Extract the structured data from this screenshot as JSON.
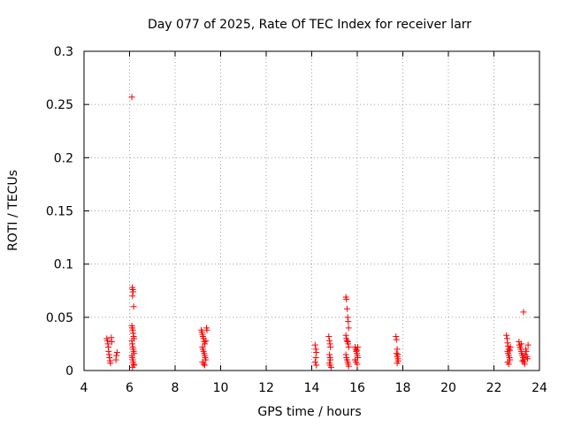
{
  "chart_data": {
    "type": "scatter",
    "title": "Day 077 of 2025, Rate Of TEC Index for receiver larr",
    "xlabel": "GPS time / hours",
    "ylabel": "ROTI / TECUs",
    "xlim": [
      4,
      24
    ],
    "ylim": [
      0,
      0.3
    ],
    "x_ticks": [
      "4",
      "6",
      "8",
      "10",
      "12",
      "14",
      "16",
      "18",
      "20",
      "22",
      "24"
    ],
    "y_ticks": [
      "0",
      "0.05",
      "0.1",
      "0.15",
      "0.2",
      "0.25",
      "0.3"
    ],
    "grid": true,
    "marker": "plus",
    "color": "#ff0000",
    "series": [
      {
        "points": [
          [
            5.0,
            0.03
          ],
          [
            5.03,
            0.028
          ],
          [
            5.05,
            0.025
          ],
          [
            5.07,
            0.022
          ],
          [
            5.08,
            0.018
          ],
          [
            5.1,
            0.015
          ],
          [
            5.12,
            0.012
          ],
          [
            5.14,
            0.009
          ],
          [
            5.16,
            0.007
          ],
          [
            5.2,
            0.031
          ],
          [
            5.22,
            0.027
          ],
          [
            5.4,
            0.01
          ],
          [
            5.42,
            0.014
          ],
          [
            5.45,
            0.017
          ],
          [
            6.1,
            0.257
          ],
          [
            6.12,
            0.078
          ],
          [
            6.14,
            0.076
          ],
          [
            6.16,
            0.074
          ],
          [
            6.13,
            0.07
          ],
          [
            6.18,
            0.06
          ],
          [
            6.1,
            0.042
          ],
          [
            6.12,
            0.04
          ],
          [
            6.14,
            0.038
          ],
          [
            6.16,
            0.035
          ],
          [
            6.18,
            0.032
          ],
          [
            6.2,
            0.03
          ],
          [
            6.1,
            0.028
          ],
          [
            6.12,
            0.025
          ],
          [
            6.14,
            0.022
          ],
          [
            6.16,
            0.02
          ],
          [
            6.18,
            0.018
          ],
          [
            6.2,
            0.016
          ],
          [
            6.1,
            0.014
          ],
          [
            6.12,
            0.012
          ],
          [
            6.14,
            0.01
          ],
          [
            6.16,
            0.008
          ],
          [
            6.18,
            0.006
          ],
          [
            6.2,
            0.005
          ],
          [
            6.13,
            0.003
          ],
          [
            9.15,
            0.038
          ],
          [
            9.18,
            0.036
          ],
          [
            9.2,
            0.034
          ],
          [
            9.22,
            0.032
          ],
          [
            9.25,
            0.03
          ],
          [
            9.28,
            0.027
          ],
          [
            9.3,
            0.025
          ],
          [
            9.2,
            0.022
          ],
          [
            9.22,
            0.02
          ],
          [
            9.25,
            0.018
          ],
          [
            9.28,
            0.016
          ],
          [
            9.3,
            0.014
          ],
          [
            9.32,
            0.012
          ],
          [
            9.35,
            0.01
          ],
          [
            9.2,
            0.008
          ],
          [
            9.25,
            0.006
          ],
          [
            9.3,
            0.005
          ],
          [
            9.38,
            0.04
          ],
          [
            9.4,
            0.038
          ],
          [
            9.35,
            0.028
          ],
          [
            14.15,
            0.024
          ],
          [
            14.18,
            0.02
          ],
          [
            14.2,
            0.017
          ],
          [
            14.18,
            0.012
          ],
          [
            14.15,
            0.008
          ],
          [
            14.2,
            0.005
          ],
          [
            14.75,
            0.032
          ],
          [
            14.78,
            0.028
          ],
          [
            14.8,
            0.025
          ],
          [
            14.82,
            0.022
          ],
          [
            14.78,
            0.015
          ],
          [
            14.8,
            0.012
          ],
          [
            14.82,
            0.01
          ],
          [
            14.78,
            0.007
          ],
          [
            14.8,
            0.005
          ],
          [
            14.85,
            0.003
          ],
          [
            15.5,
            0.069
          ],
          [
            15.52,
            0.067
          ],
          [
            15.55,
            0.058
          ],
          [
            15.58,
            0.05
          ],
          [
            15.6,
            0.046
          ],
          [
            15.62,
            0.04
          ],
          [
            15.5,
            0.033
          ],
          [
            15.52,
            0.03
          ],
          [
            15.55,
            0.028
          ],
          [
            15.58,
            0.027
          ],
          [
            15.6,
            0.025
          ],
          [
            15.62,
            0.022
          ],
          [
            15.5,
            0.015
          ],
          [
            15.52,
            0.012
          ],
          [
            15.55,
            0.01
          ],
          [
            15.58,
            0.008
          ],
          [
            15.6,
            0.006
          ],
          [
            15.62,
            0.004
          ],
          [
            15.9,
            0.022
          ],
          [
            15.93,
            0.02
          ],
          [
            15.95,
            0.018
          ],
          [
            15.98,
            0.016
          ],
          [
            16.0,
            0.014
          ],
          [
            16.02,
            0.012
          ],
          [
            15.9,
            0.01
          ],
          [
            15.95,
            0.008
          ],
          [
            16.0,
            0.006
          ],
          [
            16.02,
            0.022
          ],
          [
            15.98,
            0.019
          ],
          [
            17.7,
            0.032
          ],
          [
            17.72,
            0.029
          ],
          [
            17.75,
            0.02
          ],
          [
            17.72,
            0.016
          ],
          [
            17.75,
            0.013
          ],
          [
            17.78,
            0.011
          ],
          [
            17.8,
            0.009
          ],
          [
            17.75,
            0.007
          ],
          [
            17.78,
            0.015
          ],
          [
            22.55,
            0.033
          ],
          [
            22.58,
            0.03
          ],
          [
            22.6,
            0.026
          ],
          [
            22.62,
            0.023
          ],
          [
            22.65,
            0.02
          ],
          [
            22.6,
            0.018
          ],
          [
            22.62,
            0.016
          ],
          [
            22.65,
            0.014
          ],
          [
            22.68,
            0.012
          ],
          [
            22.7,
            0.01
          ],
          [
            22.6,
            0.008
          ],
          [
            22.65,
            0.006
          ],
          [
            22.7,
            0.019
          ],
          [
            22.72,
            0.022
          ],
          [
            23.1,
            0.027
          ],
          [
            23.12,
            0.024
          ],
          [
            23.15,
            0.022
          ],
          [
            23.18,
            0.02
          ],
          [
            23.2,
            0.018
          ],
          [
            23.22,
            0.016
          ],
          [
            23.25,
            0.014
          ],
          [
            23.28,
            0.012
          ],
          [
            23.3,
            0.01
          ],
          [
            23.32,
            0.008
          ],
          [
            23.35,
            0.006
          ],
          [
            23.38,
            0.015
          ],
          [
            23.4,
            0.02
          ],
          [
            23.42,
            0.018
          ],
          [
            23.45,
            0.013
          ],
          [
            23.48,
            0.011
          ],
          [
            23.5,
            0.024
          ],
          [
            23.3,
            0.055
          ],
          [
            23.2,
            0.025
          ],
          [
            23.25,
            0.009
          ]
        ]
      }
    ]
  }
}
